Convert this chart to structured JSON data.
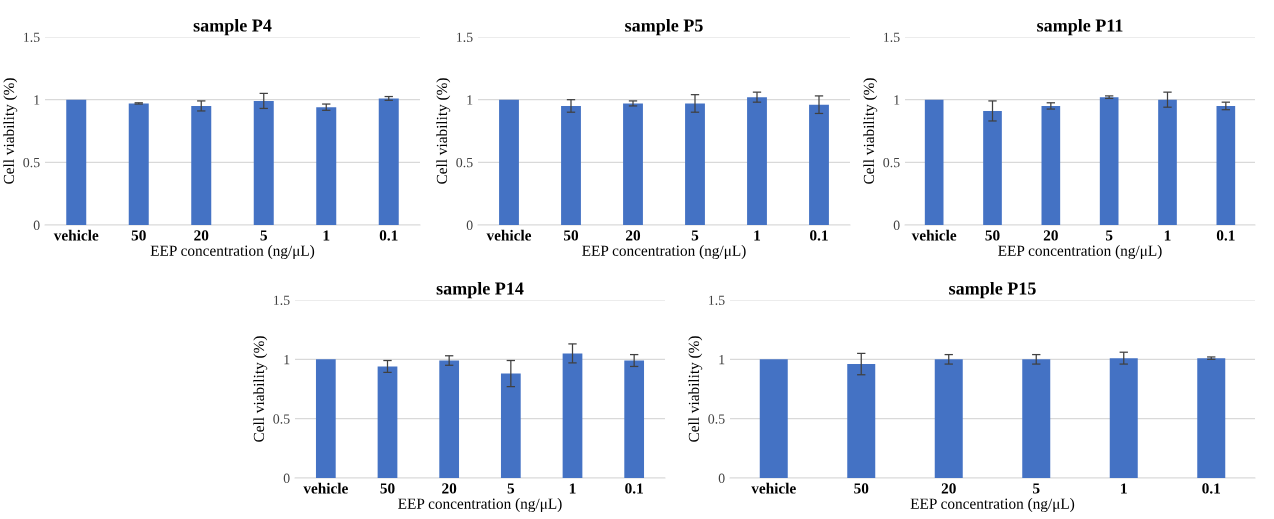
{
  "chart_data": [
    {
      "type": "bar",
      "title": "sample P4",
      "xlabel": "EEP concentration (ng/μL)",
      "ylabel": "Cell viability (%)",
      "categories": [
        "vehicle",
        "50",
        "20",
        "5",
        "1",
        "0.1"
      ],
      "values": [
        1.0,
        0.97,
        0.95,
        0.99,
        0.94,
        1.01
      ],
      "errors": [
        null,
        0.005,
        0.04,
        0.06,
        0.025,
        0.015
      ],
      "color": "#4472c4",
      "ylim": [
        0,
        1.5
      ],
      "yticks": [
        0,
        0.5,
        1,
        1.5
      ],
      "grid": "y",
      "legend": false
    },
    {
      "type": "bar",
      "title": "sample P5",
      "xlabel": "EEP concentration (ng/μL)",
      "ylabel": "Cell viability (%)",
      "categories": [
        "vehicle",
        "50",
        "20",
        "5",
        "1",
        "0.1"
      ],
      "values": [
        1.0,
        0.95,
        0.97,
        0.97,
        1.02,
        0.96
      ],
      "errors": [
        null,
        0.05,
        0.02,
        0.07,
        0.04,
        0.07
      ],
      "color": "#4472c4",
      "ylim": [
        0,
        1.5
      ],
      "yticks": [
        0,
        0.5,
        1,
        1.5
      ],
      "grid": "y",
      "legend": false
    },
    {
      "type": "bar",
      "title": "sample P11",
      "xlabel": "EEP concentration (ng/μL)",
      "ylabel": "Cell viability (%)",
      "categories": [
        "vehicle",
        "50",
        "20",
        "5",
        "1",
        "0.1"
      ],
      "values": [
        1.0,
        0.91,
        0.95,
        1.02,
        1.0,
        0.95
      ],
      "errors": [
        null,
        0.08,
        0.025,
        0.01,
        0.06,
        0.03
      ],
      "color": "#4472c4",
      "ylim": [
        0,
        1.5
      ],
      "yticks": [
        0,
        0.5,
        1,
        1.5
      ],
      "grid": "y",
      "legend": false
    },
    {
      "type": "bar",
      "title": "sample P14",
      "xlabel": "EEP concentration (ng/μL)",
      "ylabel": "Cell viability (%)",
      "categories": [
        "vehicle",
        "50",
        "20",
        "5",
        "1",
        "0.1"
      ],
      "values": [
        1.0,
        0.94,
        0.99,
        0.88,
        1.05,
        0.99
      ],
      "errors": [
        null,
        0.05,
        0.04,
        0.11,
        0.08,
        0.05
      ],
      "color": "#4472c4",
      "ylim": [
        0,
        1.5
      ],
      "yticks": [
        0,
        0.5,
        1,
        1.5
      ],
      "grid": "y",
      "legend": false
    },
    {
      "type": "bar",
      "title": "sample P15",
      "xlabel": "EEP concentration (ng/μL)",
      "ylabel": "Cell viability (%)",
      "categories": [
        "vehicle",
        "50",
        "20",
        "5",
        "1",
        "0.1"
      ],
      "values": [
        1.0,
        0.96,
        1.0,
        1.0,
        1.01,
        1.01
      ],
      "errors": [
        null,
        0.09,
        0.04,
        0.04,
        0.05,
        0.01
      ],
      "color": "#4472c4",
      "ylim": [
        0,
        1.5
      ],
      "yticks": [
        0,
        0.5,
        1,
        1.5
      ],
      "grid": "y",
      "legend": false
    }
  ]
}
